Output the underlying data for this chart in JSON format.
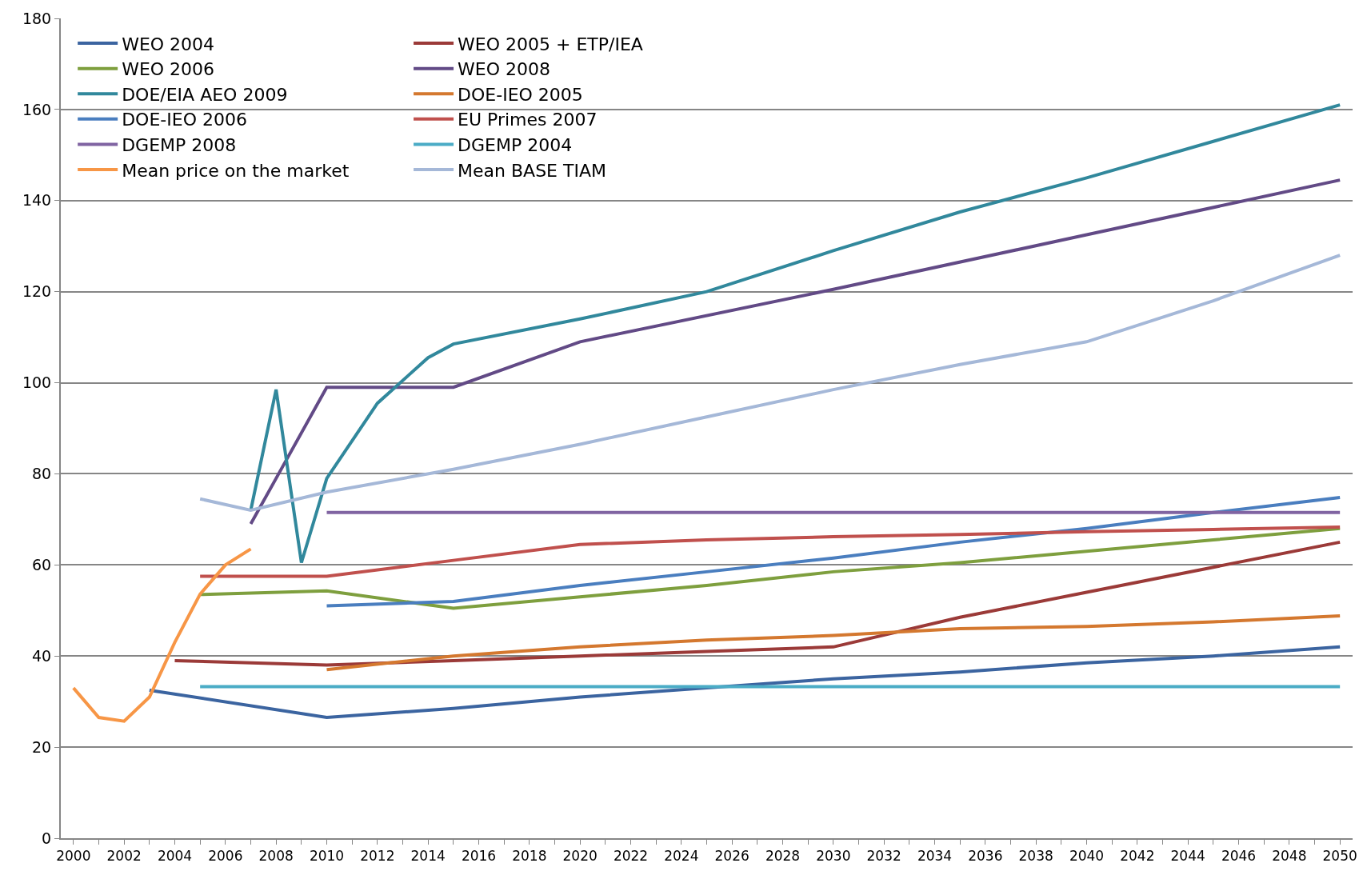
{
  "chart_data": {
    "type": "line",
    "xlim": [
      1999.5,
      2050.5
    ],
    "xticks": [
      2000,
      2002,
      2004,
      2006,
      2008,
      2010,
      2012,
      2014,
      2016,
      2018,
      2020,
      2022,
      2024,
      2026,
      2028,
      2030,
      2032,
      2034,
      2036,
      2038,
      2040,
      2042,
      2044,
      2046,
      2048,
      2050
    ],
    "ylim": [
      0,
      180
    ],
    "yticks": [
      0,
      20,
      40,
      60,
      80,
      100,
      120,
      140,
      160,
      180
    ],
    "grid": "y",
    "legend": "top left",
    "marker": "none",
    "line_style": "solid",
    "series": [
      {
        "name": "WEO 2004",
        "color": "#3b64a0",
        "x": [
          2003,
          2010,
          2015,
          2020,
          2025,
          2030,
          2035,
          2040,
          2045,
          2050
        ],
        "values": [
          32.5,
          26.5,
          28.5,
          31,
          33,
          35,
          36.5,
          38.5,
          40,
          42
        ]
      },
      {
        "name": "WEO 2005 + ETP/IEA",
        "color": "#9b3a38",
        "x": [
          2004,
          2010,
          2015,
          2020,
          2025,
          2030,
          2035,
          2040,
          2045,
          2050
        ],
        "values": [
          39,
          38,
          39,
          40,
          41,
          42,
          48.5,
          54,
          59.5,
          65
        ]
      },
      {
        "name": "WEO 2006",
        "color": "#7e9f3e",
        "x": [
          2005,
          2010,
          2015,
          2020,
          2025,
          2030,
          2035,
          2040,
          2045,
          2050
        ],
        "values": [
          53.5,
          54.3,
          50.5,
          53,
          55.5,
          58.5,
          60.5,
          63,
          65.5,
          68
        ]
      },
      {
        "name": "WEO 2008",
        "color": "#624a86",
        "x": [
          2007,
          2008,
          2010,
          2015,
          2020,
          2030,
          2040,
          2050
        ],
        "values": [
          69,
          79,
          99,
          99,
          109,
          120.5,
          132.5,
          144.5
        ]
      },
      {
        "name": "DOE/EIA AEO 2009",
        "color": "#31889c",
        "x": [
          2007,
          2008,
          2009,
          2010,
          2012,
          2014,
          2015,
          2020,
          2025,
          2030,
          2035,
          2040,
          2045,
          2050
        ],
        "values": [
          72,
          98.5,
          60.5,
          79,
          95.5,
          105.5,
          108.5,
          114,
          120,
          129,
          137.5,
          145,
          153,
          161
        ]
      },
      {
        "name": "DOE-IEO 2005",
        "color": "#d4782f",
        "x": [
          2010,
          2015,
          2020,
          2025,
          2030,
          2035,
          2040,
          2045,
          2050
        ],
        "values": [
          37,
          40,
          42,
          43.5,
          44.5,
          46,
          46.5,
          47.5,
          48.8
        ]
      },
      {
        "name": "DOE-IEO 2006",
        "color": "#4a7ebf",
        "x": [
          2010,
          2015,
          2020,
          2025,
          2030,
          2035,
          2040,
          2045,
          2050
        ],
        "values": [
          51,
          52,
          55.5,
          58.5,
          61.5,
          65,
          68,
          71.5,
          74.8
        ]
      },
      {
        "name": "EU Primes 2007",
        "color": "#c0504d",
        "x": [
          2005,
          2010,
          2015,
          2020,
          2025,
          2030,
          2035,
          2040,
          2045,
          2050
        ],
        "values": [
          57.5,
          57.5,
          61,
          64.5,
          65.5,
          66.2,
          66.7,
          67.3,
          67.8,
          68.3
        ]
      },
      {
        "name": "DGEMP 2008",
        "color": "#8064a2",
        "x": [
          2010,
          2050
        ],
        "values": [
          71.5,
          71.5
        ]
      },
      {
        "name": "DGEMP 2004",
        "color": "#4bacc6",
        "x": [
          2005,
          2050
        ],
        "values": [
          33.3,
          33.3
        ]
      },
      {
        "name": "Mean price on the market",
        "color": "#f79646",
        "x": [
          2000,
          2001,
          2002,
          2003,
          2004,
          2005,
          2006,
          2007
        ],
        "values": [
          33,
          26.5,
          25.7,
          31,
          43,
          53.6,
          60,
          63.5
        ]
      },
      {
        "name": "Mean BASE TIAM",
        "color": "#a5b8d8",
        "x": [
          2005,
          2007,
          2010,
          2015,
          2020,
          2025,
          2030,
          2035,
          2040,
          2045,
          2050
        ],
        "values": [
          74.5,
          72,
          76,
          81,
          86.5,
          92.5,
          98.5,
          104,
          109,
          118,
          128
        ]
      }
    ]
  }
}
